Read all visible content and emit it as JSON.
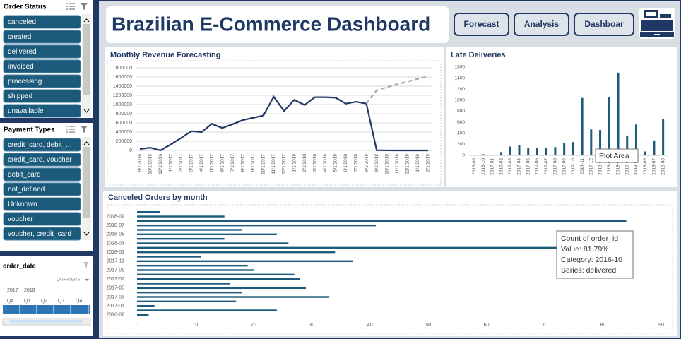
{
  "header": {
    "title": "Brazilian E-Commerce Dashboard",
    "buttons": [
      "Forecast",
      "Analysis",
      "Dashboar"
    ]
  },
  "slicers": [
    {
      "title": "Order Status",
      "items": [
        "canceled",
        "created",
        "delivered",
        "invoiced",
        "processing",
        "shipped",
        "unavailable"
      ]
    },
    {
      "title": "Payment Types",
      "items": [
        "credit_card, debit_...",
        "credit_card, voucher",
        "debit_card",
        "not_defined",
        "Unknown",
        "voucher",
        "voucher, credit_card"
      ]
    }
  ],
  "timeline": {
    "title": "order_date",
    "level": "QUARTERS",
    "years": [
      "2017",
      "2018"
    ],
    "quarters": [
      "Q4",
      "Q1",
      "Q2",
      "Q3",
      "Q4"
    ]
  },
  "chart_data": [
    {
      "type": "line",
      "title": "Monthly Revenue Forecasting",
      "categories": [
        "9/1/2016",
        "10/1/2016",
        "12/1/2016",
        "1/1/2017",
        "2/1/2017",
        "3/1/2017",
        "4/1/2017",
        "5/1/2017",
        "6/1/2017",
        "7/1/2017",
        "8/1/2017",
        "9/1/2017",
        "10/1/2017",
        "11/1/2017",
        "12/1/2017",
        "1/1/2018",
        "2/1/2018",
        "3/1/2018",
        "4/1/2018",
        "5/1/2018",
        "6/1/2018",
        "7/1/2018",
        "8/1/2018",
        "9/1/2018",
        "10/1/2018",
        "11/1/2018",
        "12/1/2018",
        "1/1/2019",
        "2/1/2019"
      ],
      "series": [
        {
          "color": "#1f3864",
          "dashed": false,
          "values": [
            30000,
            60000,
            0,
            130000,
            270000,
            420000,
            400000,
            580000,
            490000,
            570000,
            660000,
            710000,
            760000,
            1170000,
            860000,
            1100000,
            990000,
            1160000,
            1160000,
            1150000,
            1020000,
            1060000,
            1020000,
            4400,
            600,
            0,
            0,
            0,
            0
          ]
        },
        {
          "color": "#a6a6a6",
          "dashed": true,
          "values": [
            null,
            null,
            null,
            null,
            null,
            null,
            null,
            null,
            null,
            null,
            null,
            null,
            null,
            null,
            null,
            null,
            null,
            null,
            null,
            null,
            null,
            null,
            1020000,
            1310000,
            1380000,
            1440000,
            1500000,
            1560000,
            1610000
          ]
        }
      ],
      "ylim": [
        0,
        1800000
      ],
      "yticks": [
        0,
        200000,
        400000,
        600000,
        800000,
        1000000,
        1200000,
        1400000,
        1600000,
        1800000
      ],
      "grid": true
    },
    {
      "type": "bar",
      "title": "Late Deliveries",
      "categories": [
        "2016-09",
        "2016-10",
        "2017-01",
        "2017-02",
        "2017-03",
        "2017-04",
        "2017-05",
        "2017-06",
        "2017-07",
        "2017-08",
        "2017-09",
        "2017-10",
        "2017-11",
        "2017-12",
        "2018-01",
        "2018-02",
        "2018-03",
        "2018-04",
        "2018-05",
        "2018-06",
        "2018-07",
        "2018-08"
      ],
      "values": [
        5,
        20,
        10,
        60,
        160,
        190,
        140,
        130,
        140,
        150,
        230,
        240,
        1040,
        470,
        460,
        1060,
        1500,
        360,
        560,
        70,
        270,
        660
      ],
      "color": "#1b5a7a",
      "ylim": [
        0,
        1600
      ],
      "yticks": [
        0,
        200,
        400,
        600,
        800,
        1000,
        1200,
        1400,
        1600
      ],
      "grid": false,
      "annotation": "Plot Area"
    },
    {
      "type": "bar",
      "orientation": "horizontal",
      "title": "Canceled Orders by month",
      "categories": [
        "2016-09",
        null,
        "2017-01",
        null,
        "2017-03",
        null,
        "2017-05",
        null,
        "2017-07",
        null,
        "2017-09",
        null,
        "2017-11",
        null,
        "2018-01",
        null,
        "2018-03",
        null,
        "2018-05",
        null,
        "2018-07",
        null,
        "2018-09",
        null
      ],
      "values": [
        2,
        24,
        3,
        17,
        33,
        18,
        29,
        16,
        28,
        27,
        20,
        19,
        37,
        11,
        34,
        72,
        26,
        15,
        24,
        18,
        41,
        84,
        15,
        4
      ],
      "color": "#1b5a7a",
      "xlim": [
        0,
        90
      ],
      "xticks": [
        0,
        10,
        20,
        30,
        40,
        50,
        60,
        70,
        80,
        90
      ],
      "grid": false,
      "tooltip": [
        "Count of order_id",
        "Value: 81.79%",
        "Category: 2016-10",
        "Series: delivered"
      ]
    }
  ]
}
